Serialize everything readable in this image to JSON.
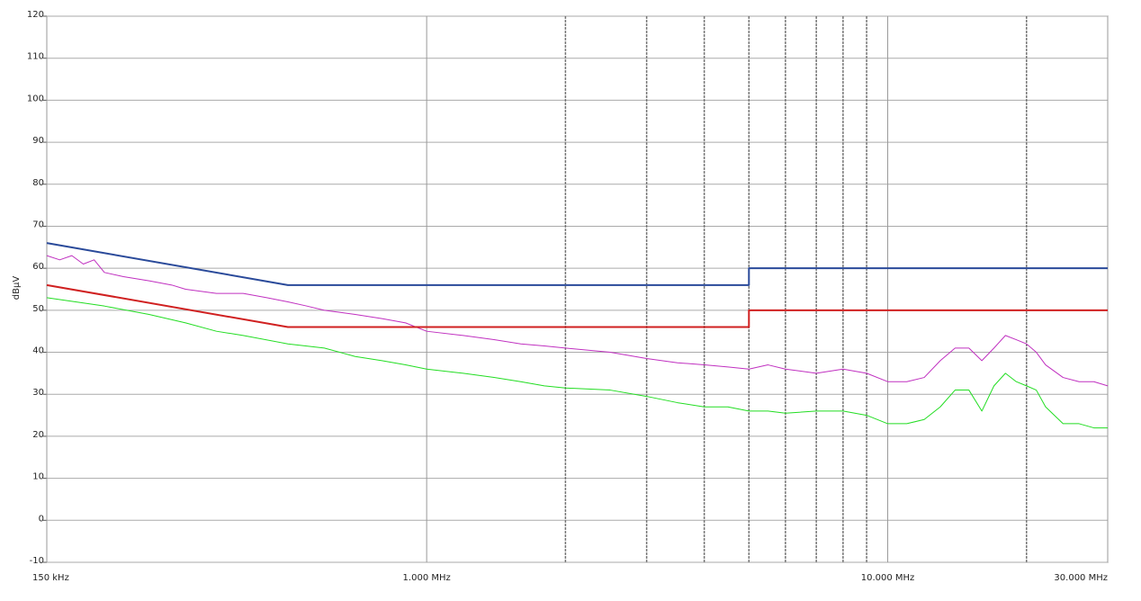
{
  "chart_data": {
    "type": "line",
    "ylabel": "dBµV",
    "xscale": "log",
    "grid": true,
    "xlim": [
      0.15,
      30
    ],
    "ylim": [
      -10,
      120
    ],
    "xticks": [
      {
        "value": 0.15,
        "label": "150 kHz"
      },
      {
        "value": 1,
        "label": "1.000 MHz"
      },
      {
        "value": 10,
        "label": "10.000 MHz"
      },
      {
        "value": 30,
        "label": "30.000 MHz"
      }
    ],
    "x_minor_ticks": [
      2,
      3,
      4,
      5,
      6,
      7,
      8,
      9,
      20
    ],
    "yticks": [
      -10,
      0,
      10,
      20,
      30,
      40,
      50,
      60,
      70,
      80,
      90,
      100,
      110,
      120
    ],
    "series": [
      {
        "color": "#c030c0",
        "width": 1,
        "x": [
          0.15,
          0.16,
          0.17,
          0.18,
          0.19,
          0.2,
          0.22,
          0.25,
          0.28,
          0.3,
          0.35,
          0.4,
          0.45,
          0.5,
          0.55,
          0.6,
          0.7,
          0.8,
          0.9,
          1.0,
          1.2,
          1.4,
          1.6,
          1.8,
          2.0,
          2.5,
          3.0,
          3.5,
          4.0,
          4.5,
          5.0,
          5.5,
          6,
          7,
          8,
          9,
          10,
          11,
          12,
          13,
          14,
          15,
          16,
          17,
          18,
          19,
          20,
          21,
          22,
          24,
          26,
          28,
          30
        ],
        "values": [
          63,
          62,
          63,
          61,
          62,
          59,
          58,
          57,
          56,
          55,
          54,
          54,
          53,
          52,
          51,
          50,
          49,
          48,
          47,
          45,
          44,
          43,
          42,
          41.5,
          41,
          40,
          38.5,
          37.5,
          37,
          36.5,
          36,
          37,
          36,
          35,
          36,
          35,
          33,
          33,
          34,
          38,
          41,
          41,
          38,
          41,
          44,
          43,
          42,
          40,
          37,
          34,
          33,
          33,
          32
        ]
      },
      {
        "color": "#22dd22",
        "width": 1,
        "x": [
          0.15,
          0.2,
          0.25,
          0.3,
          0.35,
          0.4,
          0.5,
          0.6,
          0.7,
          0.8,
          0.9,
          1.0,
          1.2,
          1.4,
          1.6,
          1.8,
          2.0,
          2.5,
          3,
          3.5,
          4,
          4.5,
          5,
          5.5,
          6,
          7,
          8,
          9,
          10,
          11,
          12,
          13,
          14,
          15,
          16,
          17,
          18,
          19,
          20,
          21,
          22,
          24,
          26,
          28,
          30
        ],
        "values": [
          53,
          51,
          49,
          47,
          45,
          44,
          42,
          41,
          39,
          38,
          37,
          36,
          35,
          34,
          33,
          32,
          31.5,
          31,
          29.5,
          28,
          27,
          27,
          26,
          26,
          25.5,
          26,
          26,
          25,
          23,
          23,
          24,
          27,
          31,
          31,
          26,
          32,
          35,
          33,
          32,
          31,
          27,
          23,
          23,
          22,
          22
        ]
      },
      {
        "color": "#2a4a9a",
        "width": 2,
        "x": [
          0.15,
          0.5,
          5,
          5,
          30
        ],
        "values": [
          66,
          56,
          56,
          60,
          60
        ]
      },
      {
        "color": "#d02020",
        "width": 2,
        "x": [
          0.15,
          0.5,
          5,
          5,
          30
        ],
        "values": [
          56,
          46,
          46,
          50,
          50
        ]
      }
    ]
  }
}
